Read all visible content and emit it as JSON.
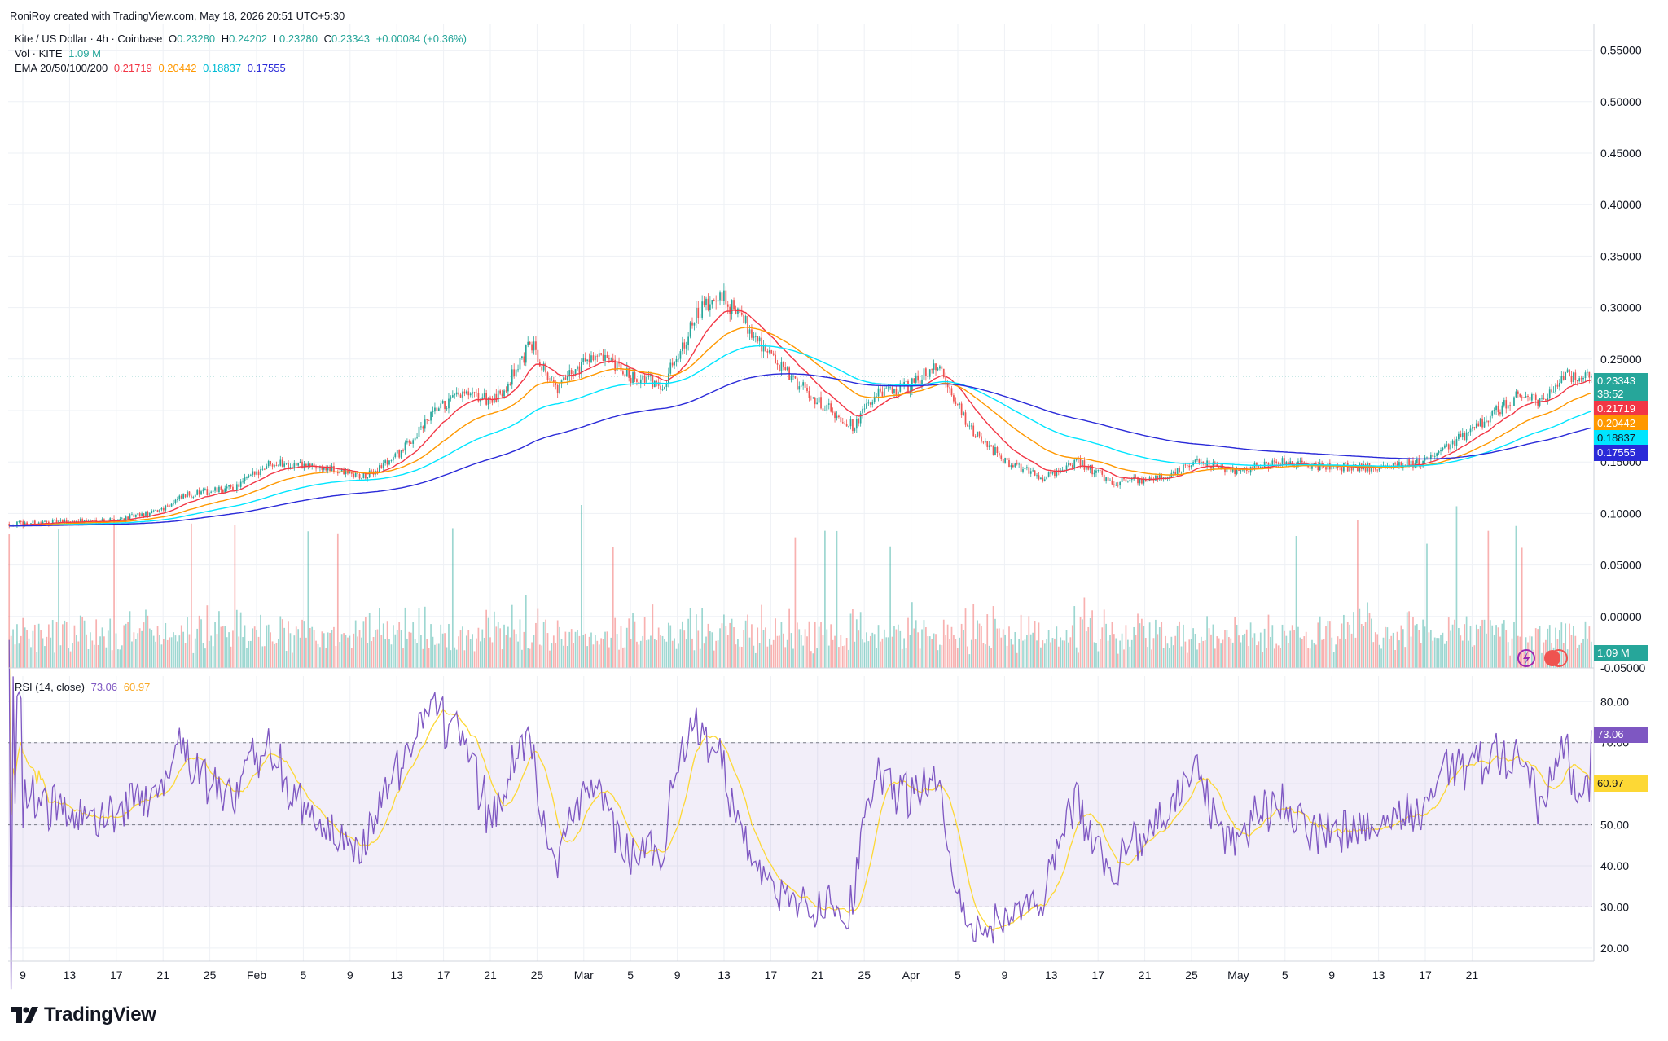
{
  "header": {
    "attribution": "RoniRoy created with TradingView.com, May 18, 2026 20:51 UTC+5:30"
  },
  "legend": {
    "symbol": "Kite / US Dollar · 4h · Coinbase",
    "open_label": "O",
    "open": "0.23280",
    "high_label": "H",
    "high": "0.24202",
    "low_label": "L",
    "low": "0.23280",
    "close_label": "C",
    "close": "0.23343",
    "change": "+0.00084 (+0.36%)",
    "vol_label": "Vol · KITE",
    "vol_value": "1.09 M",
    "ema_label": "EMA 20/50/100/200",
    "ema_values": [
      "0.21719",
      "0.20442",
      "0.18837",
      "0.17555"
    ],
    "rsi_label": "RSI (14, close)",
    "rsi_value": "73.06",
    "rsi_ma_value": "60.97"
  },
  "badges": {
    "price": "0.23343",
    "countdown": "38:52",
    "ema20": "0.21719",
    "ema50": "0.20442",
    "ema100": "0.18837",
    "ema200": "0.17555",
    "volume": "1.09 M",
    "rsi": "73.06",
    "rsi_ma": "60.97"
  },
  "colors": {
    "up": "#26a69a",
    "down": "#ef5350",
    "ema20": "#f23645",
    "ema50": "#ff9800",
    "ema100": "#00e5ff",
    "ema200": "#2a2ad8",
    "rsi": "#7e57c2",
    "rsi_ma": "#fdd835"
  },
  "brand": {
    "name": "TradingView"
  },
  "chart_data": [
    {
      "type": "candlestick",
      "interval": "4h",
      "x_ticks": [
        "9",
        "13",
        "17",
        "21",
        "25",
        "Feb",
        "5",
        "9",
        "13",
        "17",
        "21",
        "25",
        "Mar",
        "5",
        "9",
        "13",
        "17",
        "21",
        "25",
        "Apr",
        "5",
        "9",
        "13",
        "17",
        "21",
        "25",
        "May",
        "5",
        "9",
        "13",
        "17",
        "21"
      ],
      "y_ticks": [
        "0.55000",
        "0.50000",
        "0.45000",
        "0.40000",
        "0.35000",
        "0.30000",
        "0.25000",
        "0.20000",
        "0.15000",
        "0.10000",
        "0.05000",
        "0.00000",
        "-0.05000"
      ],
      "ylim": [
        -0.05,
        0.575
      ],
      "current_price": 0.23343,
      "price_path": {
        "dates": [
          "Jan 8",
          "Jan 12",
          "Jan 16",
          "Jan 19",
          "Jan 22",
          "Jan 26",
          "Jan 29",
          "Feb 2",
          "Feb 6",
          "Feb 9",
          "Feb 12",
          "Feb 14",
          "Feb 17",
          "Feb 20",
          "Feb 22",
          "Feb 25",
          "Feb 28",
          "Mar 3",
          "Mar 6",
          "Mar 8",
          "Mar 10",
          "Mar 13",
          "Mar 16",
          "Mar 19",
          "Mar 21",
          "Mar 24",
          "Mar 26",
          "Mar 29",
          "Apr 1",
          "Apr 4",
          "Apr 7",
          "Apr 10",
          "Apr 14",
          "Apr 17",
          "Apr 20",
          "Apr 24",
          "Apr 28",
          "May 2",
          "May 6",
          "May 10",
          "May 14",
          "May 16",
          "May 18"
        ],
        "close": [
          0.09,
          0.092,
          0.094,
          0.1,
          0.118,
          0.125,
          0.15,
          0.145,
          0.135,
          0.16,
          0.2,
          0.215,
          0.21,
          0.265,
          0.22,
          0.255,
          0.235,
          0.225,
          0.295,
          0.31,
          0.285,
          0.24,
          0.21,
          0.185,
          0.215,
          0.225,
          0.245,
          0.18,
          0.15,
          0.135,
          0.15,
          0.13,
          0.135,
          0.15,
          0.14,
          0.15,
          0.145,
          0.145,
          0.15,
          0.18,
          0.215,
          0.21,
          0.23343
        ]
      }
    },
    {
      "type": "line",
      "name": "EMA 20/50/100/200",
      "series": [
        {
          "name": "EMA 20",
          "last": 0.21719
        },
        {
          "name": "EMA 50",
          "last": 0.20442
        },
        {
          "name": "EMA 100",
          "last": 0.18837
        },
        {
          "name": "EMA 200",
          "last": 0.17555
        }
      ]
    },
    {
      "type": "bar",
      "name": "Vol · KITE",
      "last": "1.09 M"
    },
    {
      "type": "line",
      "name": "RSI (14, close)",
      "y_ticks": [
        "80.00",
        "70.00",
        "60.00",
        "50.00",
        "40.00",
        "30.00",
        "20.00"
      ],
      "ylim": [
        16.8,
        86.2
      ],
      "bands": [
        30,
        50,
        70
      ],
      "last_rsi": 73.06,
      "last_ma": 60.97
    }
  ]
}
